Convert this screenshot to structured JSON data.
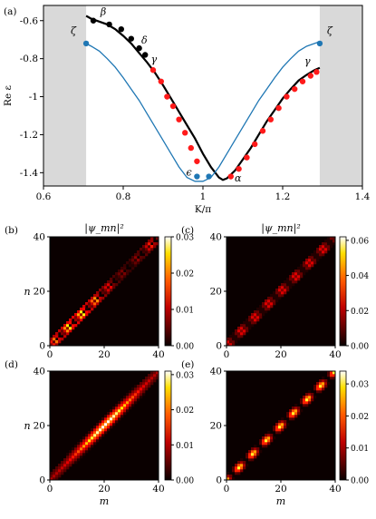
{
  "chart_data": [
    {
      "panel": "(a)",
      "type": "line",
      "xlabel": "K/π",
      "ylabel": "Re ε",
      "xlim": [
        0.6,
        1.4
      ],
      "ylim": [
        -1.47,
        -0.52
      ],
      "xticks": [
        "0.6",
        "0.8",
        "1",
        "1.2",
        "1.4"
      ],
      "yticks": [
        "-0.6",
        "-0.8",
        "-1",
        "-1.2",
        "-1.4"
      ],
      "shaded_regions": [
        [
          0.6,
          0.707
        ],
        [
          1.293,
          1.4
        ]
      ],
      "series": [
        {
          "kind": "line",
          "color": "#000000",
          "x": [
            0.707,
            0.72,
            0.74,
            0.76,
            0.78,
            0.8,
            0.82,
            0.84,
            0.86,
            0.88,
            0.9,
            0.92,
            0.94,
            0.96,
            0.98,
            1.0,
            1.02,
            1.04,
            1.05,
            1.06,
            1.08,
            1.1,
            1.12,
            1.14,
            1.16,
            1.18,
            1.2,
            1.22,
            1.24,
            1.26,
            1.28,
            1.293
          ],
          "y": [
            -0.575,
            -0.59,
            -0.605,
            -0.62,
            -0.645,
            -0.68,
            -0.72,
            -0.77,
            -0.82,
            -0.875,
            -0.94,
            -1.01,
            -1.08,
            -1.15,
            -1.22,
            -1.3,
            -1.37,
            -1.425,
            -1.438,
            -1.43,
            -1.39,
            -1.33,
            -1.27,
            -1.2,
            -1.13,
            -1.07,
            -1.01,
            -0.96,
            -0.915,
            -0.885,
            -0.86,
            -0.848
          ]
        },
        {
          "kind": "line",
          "color": "#1f77b4",
          "x": [
            0.707,
            0.72,
            0.74,
            0.76,
            0.78,
            0.8,
            0.82,
            0.84,
            0.86,
            0.88,
            0.9,
            0.92,
            0.94,
            0.96,
            0.98,
            1.0,
            1.02,
            1.04,
            1.06,
            1.08,
            1.1,
            1.12,
            1.14,
            1.16,
            1.18,
            1.2,
            1.22,
            1.24,
            1.26,
            1.28,
            1.293
          ],
          "y": [
            -0.72,
            -0.735,
            -0.76,
            -0.8,
            -0.845,
            -0.9,
            -0.96,
            -1.02,
            -1.09,
            -1.16,
            -1.23,
            -1.3,
            -1.37,
            -1.425,
            -1.445,
            -1.445,
            -1.425,
            -1.37,
            -1.3,
            -1.23,
            -1.16,
            -1.09,
            -1.02,
            -0.96,
            -0.9,
            -0.845,
            -0.8,
            -0.76,
            -0.735,
            -0.72,
            -0.71
          ]
        },
        {
          "kind": "scatter",
          "color": "#000000",
          "x": [
            0.725,
            0.765,
            0.795,
            0.82,
            0.84,
            0.855
          ],
          "y": [
            -0.6,
            -0.62,
            -0.645,
            -0.695,
            -0.745,
            -0.78
          ]
        },
        {
          "kind": "scatter",
          "color": "#ff1a1a",
          "x": [
            0.875,
            0.895,
            0.91,
            0.925,
            0.94,
            0.955,
            0.97,
            0.985,
            1.07,
            1.09,
            1.11,
            1.13,
            1.15,
            1.17,
            1.19,
            1.21,
            1.23,
            1.25,
            1.27,
            1.285
          ],
          "y": [
            -0.86,
            -0.92,
            -1.0,
            -1.05,
            -1.12,
            -1.19,
            -1.27,
            -1.34,
            -1.42,
            -1.38,
            -1.32,
            -1.25,
            -1.18,
            -1.12,
            -1.06,
            -1.0,
            -0.96,
            -0.92,
            -0.89,
            -0.87
          ]
        },
        {
          "kind": "scatter",
          "color": "#1f77b4",
          "x": [
            0.707,
            0.985,
            1.015,
            1.293
          ],
          "y": [
            -0.72,
            -1.42,
            -1.42,
            -0.72
          ]
        }
      ],
      "annotations": [
        {
          "text": "β",
          "x": 0.75,
          "y": -0.57
        },
        {
          "text": "δ",
          "x": 0.853,
          "y": -0.72
        },
        {
          "text": "γ",
          "x": 0.877,
          "y": -0.82
        },
        {
          "text": "ζ",
          "x": 0.675,
          "y": -0.67
        },
        {
          "text": "ϵ",
          "x": 0.965,
          "y": -1.415
        },
        {
          "text": "α",
          "x": 1.088,
          "y": -1.445
        },
        {
          "text": "ζ",
          "x": 1.318,
          "y": -0.67
        },
        {
          "text": "γ",
          "x": 1.262,
          "y": -0.83
        }
      ]
    },
    {
      "panel": "(b)",
      "type": "heatmap",
      "title": "|ψ_mn|²",
      "ylabel": "n",
      "xlabel": "",
      "range": [
        0,
        40
      ],
      "ticks": [
        "0",
        "20",
        "40"
      ],
      "pattern": "ring-chain",
      "colorbar": {
        "min": 0,
        "max": 0.03,
        "ticks": [
          "0.00",
          "0.01",
          "0.02",
          "0.03"
        ]
      }
    },
    {
      "panel": "(c)",
      "type": "heatmap",
      "title": "|ψ_mn|²",
      "ylabel": "",
      "xlabel": "",
      "range": [
        0,
        40
      ],
      "ticks": [
        "0",
        "20",
        "40"
      ],
      "pattern": "faint-chain",
      "colorbar": {
        "min": 0,
        "max": 0.062,
        "ticks": [
          "0.00",
          "0.02",
          "0.04",
          "0.06"
        ]
      }
    },
    {
      "panel": "(d)",
      "type": "heatmap",
      "title": "",
      "ylabel": "n",
      "xlabel": "m",
      "range": [
        0,
        40
      ],
      "ticks": [
        "0",
        "20",
        "40"
      ],
      "pattern": "broad-band",
      "colorbar": {
        "min": 0,
        "max": 0.031,
        "ticks": [
          "0.00",
          "0.01",
          "0.02",
          "0.03"
        ]
      }
    },
    {
      "panel": "(e)",
      "type": "heatmap",
      "title": "",
      "ylabel": "",
      "xlabel": "m",
      "range": [
        0,
        40
      ],
      "ticks": [
        "0",
        "20",
        "40"
      ],
      "pattern": "bright-chain",
      "colorbar": {
        "min": 0,
        "max": 0.034,
        "ticks": [
          "0.00",
          "0.01",
          "0.02",
          "0.03"
        ]
      }
    }
  ]
}
